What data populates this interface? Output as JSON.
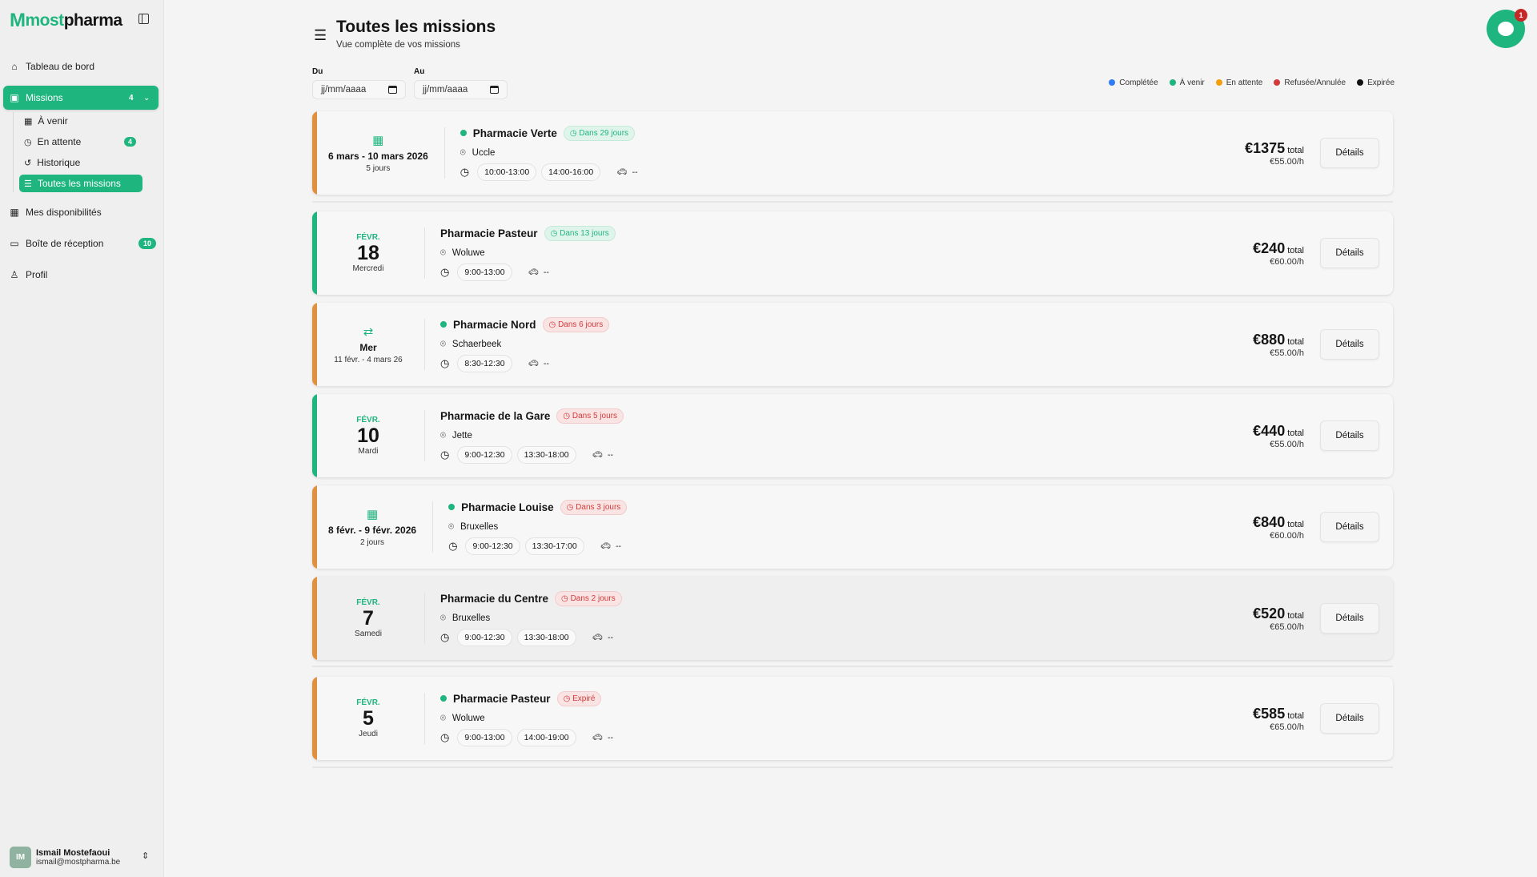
{
  "brand": {
    "name_prefix": "M",
    "name_most": "most",
    "name_pharma": "pharma"
  },
  "sidebar": {
    "items": [
      {
        "label": "Tableau de bord",
        "icon": "home-icon"
      },
      {
        "label": "Missions",
        "icon": "briefcase-icon",
        "badge": "4"
      },
      {
        "label": "Mes disponibilités",
        "icon": "calendar-check-icon"
      },
      {
        "label": "Boîte de réception",
        "icon": "inbox-icon",
        "badge": "10"
      },
      {
        "label": "Profil",
        "icon": "user-icon"
      }
    ],
    "sub_items": [
      {
        "label": "À venir"
      },
      {
        "label": "En attente",
        "badge": "4"
      },
      {
        "label": "Historique"
      },
      {
        "label": "Toutes les missions"
      }
    ],
    "user": {
      "initials": "IM",
      "name": "Ismail Mostefaoui",
      "email": "ismail@mostpharma.be"
    }
  },
  "header": {
    "title": "Toutes les missions",
    "subtitle": "Vue complète de vos missions"
  },
  "filters": {
    "from_label": "Du",
    "to_label": "Au",
    "from_placeholder": "jj/mm/aaaa",
    "to_placeholder": "jj/mm/aaaa"
  },
  "legend": [
    {
      "label": "Complétée",
      "color": "#2f7cf6"
    },
    {
      "label": "À venir",
      "color": "#1fb57f"
    },
    {
      "label": "En attente",
      "color": "#f59e0b"
    },
    {
      "label": "Refusée/Annulée",
      "color": "#d33b3b"
    },
    {
      "label": "Expirée",
      "color": "#111111"
    }
  ],
  "chat": {
    "unread": "1"
  },
  "colors": {
    "accent": "#1fb57f",
    "pending": "#e0913f"
  },
  "missions": [
    {
      "kind": "range",
      "range": "6 mars - 10 mars 2026",
      "days": "5 jours",
      "name": "Pharmacie Verte",
      "dot": true,
      "badge": "Dans 29 jours",
      "badge_tone": "green",
      "location": "Uccle",
      "slots": [
        "10:00-13:00",
        "14:00-16:00"
      ],
      "transport": "--",
      "total": "€1375",
      "total_label": "total",
      "rate": "€55.00/h",
      "button": "Détails",
      "bar": "#e0913f"
    },
    {
      "kind": "single",
      "month": "FÉVR.",
      "day": "18",
      "weekday": "Mercredi",
      "name": "Pharmacie Pasteur",
      "dot": false,
      "badge": "Dans 13 jours",
      "badge_tone": "green",
      "location": "Woluwe",
      "slots": [
        "9:00-13:00"
      ],
      "transport": "--",
      "total": "€240",
      "total_label": "total",
      "rate": "€60.00/h",
      "button": "Détails",
      "bar": "#1fb57f"
    },
    {
      "kind": "recurring",
      "weekday_short": "Mer",
      "range": "11 févr. - 4 mars 26",
      "name": "Pharmacie Nord",
      "dot": true,
      "badge": "Dans 6 jours",
      "badge_tone": "red",
      "location": "Schaerbeek",
      "slots": [
        "8:30-12:30"
      ],
      "transport": "--",
      "total": "€880",
      "total_label": "total",
      "rate": "€55.00/h",
      "button": "Détails",
      "bar": "#e0913f"
    },
    {
      "kind": "single",
      "month": "FÉVR.",
      "day": "10",
      "weekday": "Mardi",
      "name": "Pharmacie de la Gare",
      "dot": false,
      "badge": "Dans 5 jours",
      "badge_tone": "red",
      "location": "Jette",
      "slots": [
        "9:00-12:30",
        "13:30-18:00"
      ],
      "transport": "--",
      "total": "€440",
      "total_label": "total",
      "rate": "€55.00/h",
      "button": "Détails",
      "bar": "#1fb57f"
    },
    {
      "kind": "range",
      "range": "8 févr. - 9 févr. 2026",
      "days": "2 jours",
      "name": "Pharmacie Louise",
      "dot": true,
      "badge": "Dans 3 jours",
      "badge_tone": "red",
      "location": "Bruxelles",
      "slots": [
        "9:00-12:30",
        "13:30-17:00"
      ],
      "transport": "--",
      "total": "€840",
      "total_label": "total",
      "rate": "€60.00/h",
      "button": "Détails",
      "bar": "#e0913f"
    },
    {
      "kind": "single",
      "month": "FÉVR.",
      "day": "7",
      "weekday": "Samedi",
      "name": "Pharmacie du Centre",
      "dot": false,
      "badge": "Dans 2 jours",
      "badge_tone": "red",
      "location": "Bruxelles",
      "slots": [
        "9:00-12:30",
        "13:30-18:00"
      ],
      "transport": "--",
      "total": "€520",
      "total_label": "total",
      "rate": "€65.00/h",
      "button": "Détails",
      "bar": "#e0913f"
    },
    {
      "kind": "single",
      "month": "FÉVR.",
      "day": "5",
      "weekday": "Jeudi",
      "name": "Pharmacie Pasteur",
      "dot": true,
      "badge": "Expiré",
      "badge_tone": "red",
      "location": "Woluwe",
      "slots": [
        "9:00-13:00",
        "14:00-19:00"
      ],
      "transport": "--",
      "total": "€585",
      "total_label": "total",
      "rate": "€65.00/h",
      "button": "Détails",
      "bar": "#e0913f"
    }
  ]
}
